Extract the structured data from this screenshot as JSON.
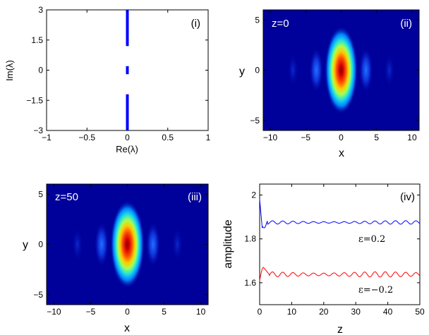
{
  "chart_data": [
    {
      "panel": "(i)",
      "type": "scatter",
      "xlabel": "Re(λ)",
      "ylabel": "Im(λ)",
      "xlim": [
        -1,
        1
      ],
      "ylim": [
        -3,
        3
      ],
      "xticks": [
        "−1",
        "−0.5",
        "0",
        "0.5",
        "1"
      ],
      "yticks": [
        "3",
        "1.5",
        "0",
        "−1.5",
        "−3"
      ],
      "series": [
        {
          "color": "#0000ff",
          "segments": [
            [
              0,
              3,
              0,
              1.2
            ],
            [
              0,
              0.2,
              0,
              -0.2
            ],
            [
              0,
              -1.2,
              0,
              -3
            ]
          ]
        }
      ]
    },
    {
      "panel": "(ii)",
      "type": "heatmap",
      "annotation": "z=0",
      "xlabel": "x",
      "ylabel": "y",
      "xlim": [
        -11,
        11
      ],
      "ylim": [
        -6,
        6
      ],
      "xticks": [
        "−10",
        "−5",
        "0",
        "5",
        "10"
      ],
      "yticks": [
        "5",
        "0",
        "−5"
      ],
      "peak": [
        0,
        0
      ],
      "width_x": 1.3,
      "width_y": 2.5,
      "side_lobes_x": [
        -3.5,
        3.5,
        -6.8,
        6.8
      ]
    },
    {
      "panel": "(iii)",
      "type": "heatmap",
      "annotation": "z=50",
      "xlabel": "x",
      "ylabel": "y",
      "xlim": [
        -11,
        11
      ],
      "ylim": [
        -6,
        6
      ],
      "xticks": [
        "−10",
        "−5",
        "0",
        "5",
        "10"
      ],
      "yticks": [
        "5",
        "0",
        "−5"
      ],
      "peak": [
        0,
        0
      ],
      "width_x": 1.3,
      "width_y": 2.5,
      "side_lobes_x": [
        -3.5,
        3.5,
        -6.8,
        6.8
      ]
    },
    {
      "panel": "(iv)",
      "type": "line",
      "xlabel": "z",
      "ylabel": "amplitude",
      "xlim": [
        0,
        50
      ],
      "ylim": [
        1.5,
        2.05
      ],
      "xticks": [
        "0",
        "10",
        "20",
        "30",
        "40",
        "50"
      ],
      "yticks": [
        "2",
        "1.8",
        "1.6"
      ],
      "series": [
        {
          "name": "ε=0.2",
          "color": "#0000ff",
          "start": 1.98,
          "dip": 1.85,
          "mean": 1.875,
          "oscillation": 0.008,
          "period": 3.2
        },
        {
          "name": "ε=−0.2",
          "color": "#ff0000",
          "start": 1.61,
          "peak": 1.67,
          "mean": 1.638,
          "oscillation": 0.012,
          "period": 3.2
        }
      ]
    }
  ]
}
